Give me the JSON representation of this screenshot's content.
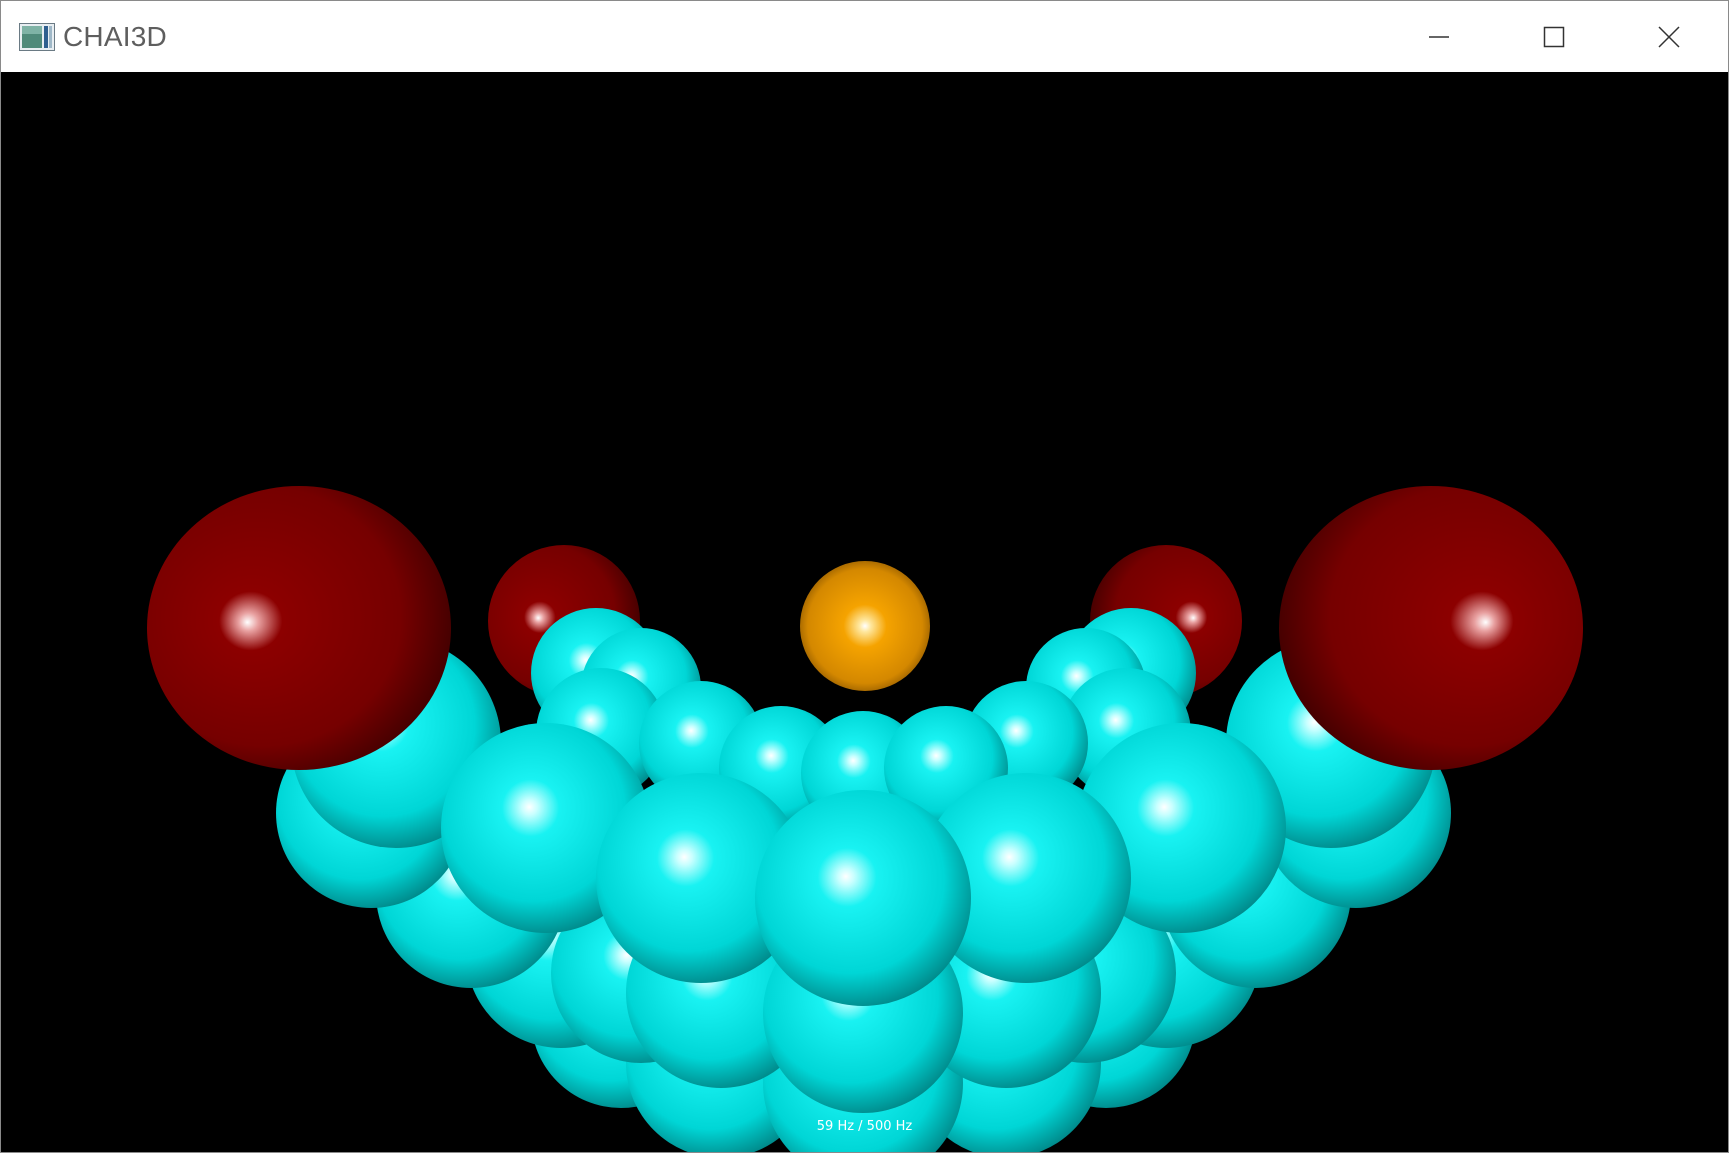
{
  "window": {
    "title": "CHAI3D",
    "controls": {
      "minimize": "minimize-icon",
      "maximize": "maximize-icon",
      "close": "close-icon"
    }
  },
  "viewport": {
    "background": "#000000",
    "status_text": "59 Hz / 500 Hz"
  },
  "scene_colors": {
    "body": "#00e6e6",
    "end_caps": "#7a0000",
    "cursor": "#f0a000"
  }
}
